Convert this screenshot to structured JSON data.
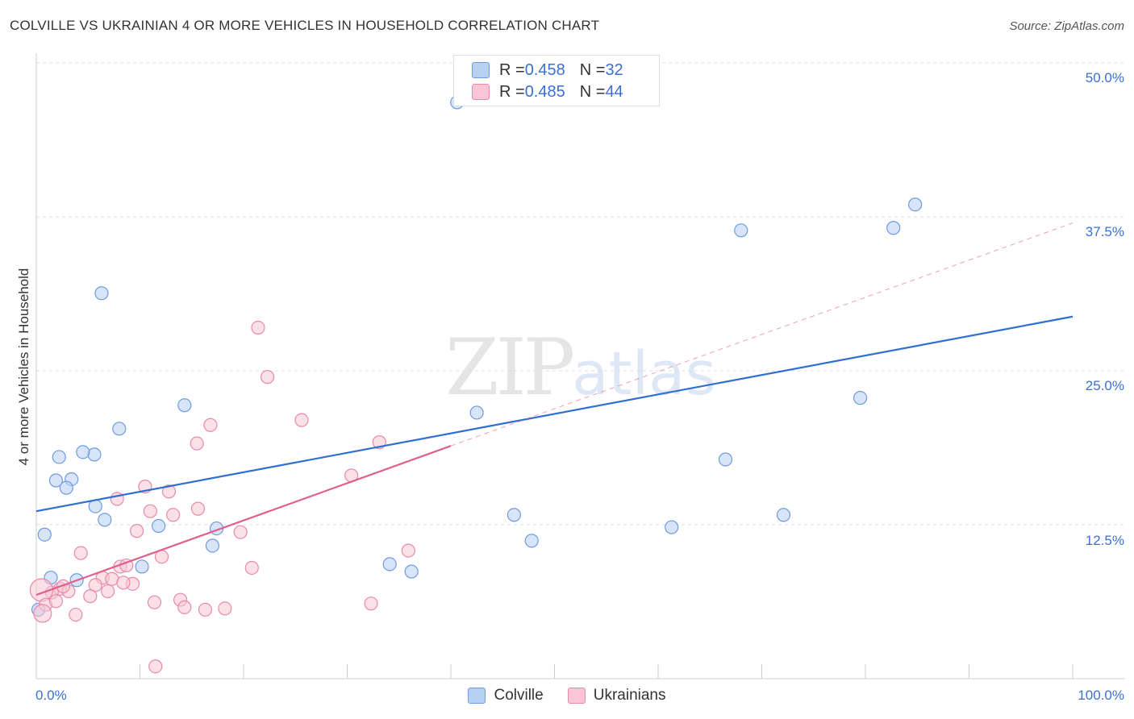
{
  "header": {
    "title": "COLVILLE VS UKRAINIAN 4 OR MORE VEHICLES IN HOUSEHOLD CORRELATION CHART",
    "source": "Source: ZipAtlas.com"
  },
  "legend_top": {
    "rows": [
      {
        "r_label": "R = ",
        "r_value": "0.458",
        "n_label": "N = ",
        "n_value": "32",
        "color": "#b8d0f2",
        "border": "#6c9be0"
      },
      {
        "r_label": "R = ",
        "r_value": "0.485",
        "n_label": "N = ",
        "n_value": "44",
        "color": "#f8c6d6",
        "border": "#e88aa8"
      }
    ]
  },
  "legend_bottom": {
    "items": [
      {
        "label": "Colville",
        "color": "#b8d0f2",
        "border": "#6c9be0"
      },
      {
        "label": "Ukrainians",
        "color": "#f8c6d6",
        "border": "#e88aa8"
      }
    ]
  },
  "watermark": {
    "zip": "ZIP",
    "atlas": "atlas"
  },
  "chart_data": {
    "type": "scatter",
    "title": "COLVILLE VS UKRAINIAN 4 OR MORE VEHICLES IN HOUSEHOLD CORRELATION CHART",
    "xlabel": "",
    "ylabel": "4 or more Vehicles in Household",
    "xlim": [
      0,
      100
    ],
    "ylim": [
      0,
      50
    ],
    "x_tick_labels": [
      "0.0%",
      "100.0%"
    ],
    "y_tick_labels": [
      "12.5%",
      "25.0%",
      "37.5%",
      "50.0%"
    ],
    "y_ticks": [
      12.5,
      25.0,
      37.5,
      50.0
    ],
    "grid": "horizontal dashed",
    "legend_position": "top-center",
    "series": [
      {
        "name": "Colville",
        "color": "#6c9be0",
        "fill": "#b8d0f2",
        "trend": {
          "x": [
            0,
            100
          ],
          "y": [
            13.6,
            29.4
          ],
          "color": "#2f6fd0"
        },
        "points": [
          [
            40.6,
            46.8
          ],
          [
            84.8,
            38.5
          ],
          [
            82.7,
            36.6
          ],
          [
            68.0,
            36.4
          ],
          [
            6.3,
            31.3
          ],
          [
            14.3,
            22.2
          ],
          [
            79.5,
            22.8
          ],
          [
            42.5,
            21.6
          ],
          [
            8.0,
            20.3
          ],
          [
            2.2,
            18.0
          ],
          [
            5.6,
            18.2
          ],
          [
            4.5,
            18.4
          ],
          [
            66.5,
            17.8
          ],
          [
            1.9,
            16.1
          ],
          [
            3.4,
            16.2
          ],
          [
            2.9,
            15.5
          ],
          [
            5.7,
            14.0
          ],
          [
            6.6,
            12.9
          ],
          [
            46.1,
            13.3
          ],
          [
            72.1,
            13.3
          ],
          [
            11.8,
            12.4
          ],
          [
            17.4,
            12.2
          ],
          [
            0.8,
            11.7
          ],
          [
            47.8,
            11.2
          ],
          [
            61.3,
            12.3
          ],
          [
            17.0,
            10.8
          ],
          [
            10.2,
            9.1
          ],
          [
            34.1,
            9.3
          ],
          [
            36.2,
            8.7
          ],
          [
            1.4,
            8.2
          ],
          [
            3.9,
            8.0
          ],
          [
            0.2,
            5.6
          ]
        ]
      },
      {
        "name": "Ukrainians",
        "color": "#e88aa8",
        "fill": "#f8c6d6",
        "trend": {
          "x": [
            0,
            40
          ],
          "y": [
            6.8,
            18.9
          ],
          "color": "#e0608c"
        },
        "trend_extended": {
          "x": [
            40,
            100
          ],
          "y": [
            18.9,
            37.0
          ]
        },
        "points": [
          [
            21.4,
            28.5
          ],
          [
            22.3,
            24.5
          ],
          [
            25.6,
            21.0
          ],
          [
            16.8,
            20.6
          ],
          [
            15.5,
            19.1
          ],
          [
            33.1,
            19.2
          ],
          [
            30.4,
            16.5
          ],
          [
            10.5,
            15.6
          ],
          [
            12.8,
            15.2
          ],
          [
            7.8,
            14.6
          ],
          [
            11.0,
            13.6
          ],
          [
            15.6,
            13.8
          ],
          [
            13.2,
            13.3
          ],
          [
            9.7,
            12.0
          ],
          [
            19.7,
            11.9
          ],
          [
            35.9,
            10.4
          ],
          [
            4.3,
            10.2
          ],
          [
            12.1,
            9.9
          ],
          [
            8.1,
            9.1
          ],
          [
            8.7,
            9.2
          ],
          [
            20.8,
            9.0
          ],
          [
            6.4,
            8.2
          ],
          [
            7.3,
            8.1
          ],
          [
            5.7,
            7.6
          ],
          [
            9.3,
            7.7
          ],
          [
            2.3,
            7.3
          ],
          [
            1.5,
            7.0
          ],
          [
            3.1,
            7.1
          ],
          [
            5.2,
            6.7
          ],
          [
            6.9,
            7.1
          ],
          [
            0.5,
            7.2
          ],
          [
            13.9,
            6.4
          ],
          [
            11.4,
            6.2
          ],
          [
            14.3,
            5.8
          ],
          [
            0.9,
            6.0
          ],
          [
            1.9,
            6.3
          ],
          [
            16.3,
            5.6
          ],
          [
            18.2,
            5.7
          ],
          [
            32.3,
            6.1
          ],
          [
            0.6,
            5.3
          ],
          [
            3.8,
            5.2
          ],
          [
            11.5,
            1.0
          ],
          [
            8.4,
            7.8
          ],
          [
            2.6,
            7.5
          ]
        ]
      }
    ]
  }
}
